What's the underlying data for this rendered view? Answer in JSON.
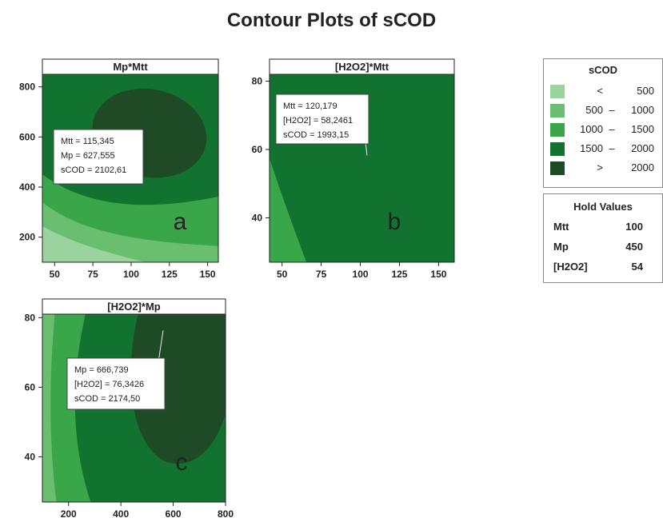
{
  "title": "Contour Plots of sCOD",
  "colors": {
    "c1": "#9ad39d",
    "c2": "#69bf6f",
    "c3": "#3aa64a",
    "c4": "#12722f",
    "c5": "#1f4a26",
    "frame": "#222222",
    "titlebar": "#ffffff"
  },
  "legend": {
    "title": "sCOD",
    "rows": [
      {
        "a": "<",
        "d": "",
        "b": "500",
        "color": "#9ad39d"
      },
      {
        "a": "500",
        "d": "–",
        "b": "1000",
        "color": "#69bf6f"
      },
      {
        "a": "1000",
        "d": "–",
        "b": "1500",
        "color": "#3aa64a"
      },
      {
        "a": "1500",
        "d": "–",
        "b": "2000",
        "color": "#12722f"
      },
      {
        "a": ">",
        "d": "",
        "b": "2000",
        "color": "#1f4a26"
      }
    ]
  },
  "hold_values": {
    "title": "Hold Values",
    "items": [
      {
        "name": "Mtt",
        "value": "100"
      },
      {
        "name": "Mp",
        "value": "450"
      },
      {
        "name": "[H2O2]",
        "value": "54"
      }
    ]
  },
  "chart_data": [
    {
      "type": "contour",
      "panel_title": "Mp*Mtt",
      "panel_letter": "a",
      "x_ticks": [
        50,
        75,
        100,
        125,
        150
      ],
      "y_ticks": [
        200,
        400,
        600,
        800
      ],
      "xlim": [
        42,
        157
      ],
      "ylim": [
        100,
        850
      ],
      "annotation": {
        "lines": [
          "Mtt = 115,345",
          "Mp = 627,555",
          "sCOD = 2102,61"
        ],
        "point": [
          115.345,
          627.555
        ]
      }
    },
    {
      "type": "contour",
      "panel_title": "[H2O2]*Mtt",
      "panel_letter": "b",
      "x_ticks": [
        50,
        75,
        100,
        125,
        150
      ],
      "y_ticks": [
        40,
        60,
        80
      ],
      "xlim": [
        42,
        160
      ],
      "ylim": [
        27,
        82
      ],
      "annotation": {
        "lines": [
          "Mtt = 120,179",
          "[H2O2] = 58,2461",
          "sCOD = 1993,15"
        ],
        "point": [
          120.179,
          58.2461
        ]
      }
    },
    {
      "type": "contour",
      "panel_title": "[H2O2]*Mp",
      "panel_letter": "c",
      "x_ticks": [
        200,
        400,
        600,
        800
      ],
      "y_ticks": [
        40,
        60,
        80
      ],
      "xlim": [
        100,
        800
      ],
      "ylim": [
        27,
        81
      ],
      "annotation": {
        "lines": [
          "Mp = 666,739",
          "[H2O2] = 76,3426",
          "sCOD = 2174,50"
        ],
        "point": [
          666.739,
          76.3426
        ]
      }
    }
  ]
}
